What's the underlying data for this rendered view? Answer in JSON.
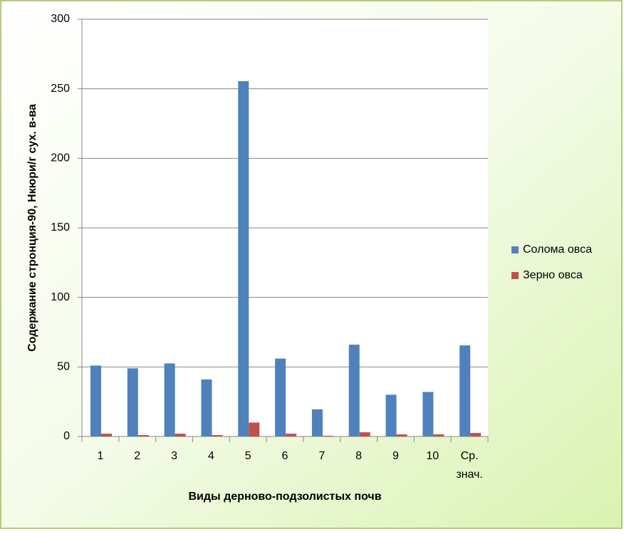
{
  "chart_data": {
    "type": "bar",
    "x_label": "Виды дерново-подзолистых почв",
    "y_label": "Содержание стронция-90, Нкюри/г сух. в-ва",
    "categories": [
      "1",
      "2",
      "3",
      "4",
      "5",
      "6",
      "7",
      "8",
      "9",
      "10",
      "Ср. знач."
    ],
    "series": [
      {
        "name": "Солома овса",
        "color": "#4f81bd",
        "values": [
          51,
          49,
          52.5,
          41,
          255.5,
          56,
          19.5,
          66,
          30,
          32,
          65.5
        ]
      },
      {
        "name": "Зерно овса",
        "color": "#c0504d",
        "values": [
          2,
          1,
          2,
          1,
          10,
          2,
          0.5,
          3,
          1.5,
          1.5,
          2.5
        ]
      }
    ],
    "ylim": [
      0,
      300
    ],
    "yticks": [
      0,
      50,
      100,
      150,
      200,
      250,
      300
    ],
    "grid": true,
    "legend": "right"
  }
}
